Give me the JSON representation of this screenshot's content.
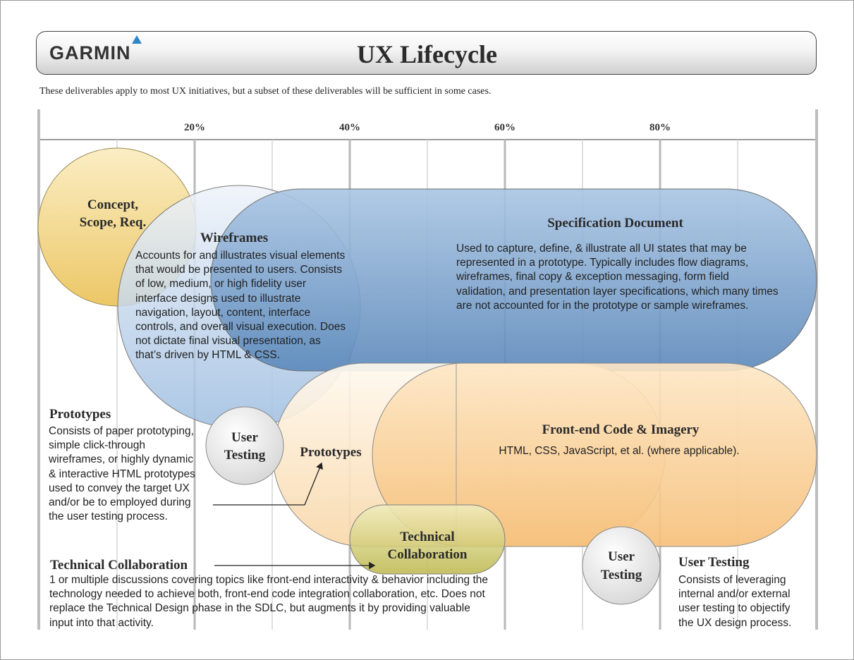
{
  "header": {
    "logo_text": "GARMIN",
    "logo_mark": "triangle-icon",
    "title": "UX Lifecycle",
    "subtitle": "These deliverables apply to most UX initiatives, but a subset of these deliverables will be sufficient in some cases."
  },
  "scale": {
    "ticks": [
      "20%",
      "40%",
      "60%",
      "80%"
    ]
  },
  "colors": {
    "concept": "#f0d27a",
    "wireframes": "#b9cfe8",
    "specification": "#7ea6ce",
    "prototypes": "#fde9cf",
    "frontend": "#f8c98a",
    "technical": "#d5cf7a",
    "user_testing": "#f0f0f0",
    "gridline": "#c9c9c9"
  },
  "bubbles": {
    "concept": "Concept,\nScope, Req.",
    "wireframes": {
      "title": "Wireframes",
      "body": "Accounts for and illustrates visual elements that would be presented to users. Consists of low, medium, or high fidelity user interface designs used to illustrate navigation, layout, content, interface controls, and overall visual execution. Does not dictate final visual presentation, as that’s driven by HTML & CSS."
    },
    "specification": {
      "title": "Specification Document",
      "body": "Used to capture, define, & illustrate all UI states that may be represented in a prototype. Typically includes flow diagrams, wireframes, final copy & exception messaging, form field validation, and presentation layer specifications, which many times are not accounted for in the prototype or sample wireframes."
    },
    "user_testing_1": "User\nTesting",
    "prototypes": "Prototypes",
    "frontend": {
      "title": "Front-end Code & Imagery",
      "body": "HTML, CSS, JavaScript, et al. (where applicable)."
    },
    "technical": "Technical\nCollaboration",
    "user_testing_2": "User\nTesting"
  },
  "notes": {
    "prototypes": {
      "title": "Prototypes",
      "body": "Consists of paper prototyping, simple click-through wireframes, or highly dynamic & interactive HTML prototypes used to convey the target UX and/or be to  employed during the user testing process."
    },
    "technical": {
      "title": "Technical Collaboration",
      "body": "1 or multiple discussions covering topics like front-end interactivity & behavior including the technology needed to achieve both, front-end code integration collaboration, etc. Does not replace the Technical Design phase in the SDLC, but augments it by providing valuable input into that activity."
    },
    "user_testing": {
      "title": "User Testing",
      "body": "Consists of leveraging internal and/or external user testing to objectify the UX design process."
    }
  }
}
